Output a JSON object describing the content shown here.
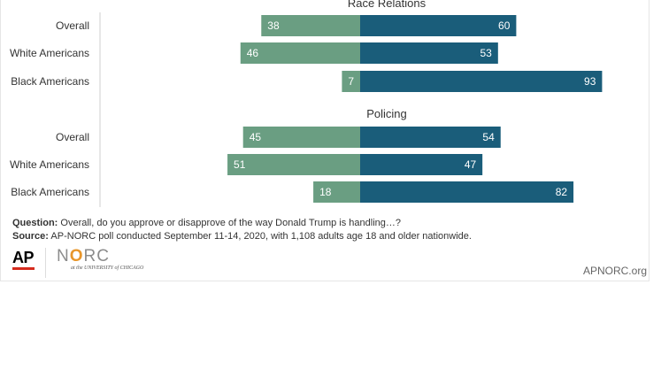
{
  "chart_data": [
    {
      "type": "bar",
      "title": "Race Relations",
      "categories": [
        "Overall",
        "White Americans",
        "Black Americans"
      ],
      "series": [
        {
          "values": [
            38,
            46,
            7
          ],
          "color": "#6a9e82"
        },
        {
          "values": [
            60,
            53,
            93
          ],
          "color": "#1a5d7a"
        }
      ]
    },
    {
      "type": "bar",
      "title": "Policing",
      "categories": [
        "Overall",
        "White Americans",
        "Black Americans"
      ],
      "series": [
        {
          "values": [
            45,
            51,
            18
          ],
          "color": "#6a9e82"
        },
        {
          "values": [
            54,
            47,
            82
          ],
          "color": "#1a5d7a"
        }
      ]
    }
  ],
  "footer": {
    "question_label": "Question:",
    "question_text": " Overall, do you approve or disapprove of the way Donald Trump is handling…?",
    "source_label": "Source:",
    "source_text": " AP-NORC poll conducted September 11-14, 2020, with 1,108 adults age 18 and older nationwide.",
    "ap_logo": "AP",
    "norc_n": "N",
    "norc_o": "O",
    "norc_rc": "RC",
    "norc_sub": "at the UNIVERSITY of CHICAGO",
    "site": "APNORC.org"
  }
}
